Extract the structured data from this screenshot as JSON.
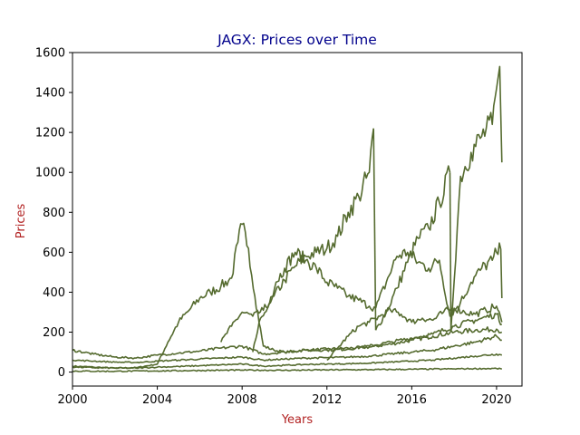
{
  "chart_data": {
    "type": "line",
    "title": "JAGX: Prices over Time",
    "xlabel": "Years",
    "ylabel": "Prices",
    "xlim": [
      2000.0,
      2021.2
    ],
    "ylim": [
      -70,
      1600
    ],
    "xticks": [
      2000,
      2004,
      2008,
      2012,
      2016,
      2020
    ],
    "yticks": [
      0,
      200,
      400,
      600,
      800,
      1000,
      1200,
      1400,
      1600
    ],
    "grid": false,
    "legend": "none",
    "colors": {
      "line": "#556b2f",
      "title": "#00008b",
      "axis_label": "#b22222"
    },
    "series": [
      {
        "x": [
          2000.0,
          2001.0,
          2002.0,
          2003.0,
          2004.0,
          2004.5,
          2005.0,
          2005.5,
          2006.0,
          2006.5,
          2007.0,
          2007.5,
          2007.8,
          2008.0,
          2008.3,
          2008.6,
          2009.0,
          2009.5,
          2010.0,
          2011.0,
          2012.0,
          2013.0,
          2014.0,
          2015.0,
          2016.0,
          2017.0,
          2018.0,
          2019.0,
          2020.0,
          2020.25
        ],
        "y": [
          30,
          25,
          20,
          22,
          40,
          150,
          250,
          310,
          370,
          400,
          430,
          470,
          650,
          740,
          620,
          380,
          130,
          110,
          100,
          110,
          115,
          120,
          125,
          140,
          160,
          180,
          200,
          210,
          215,
          200
        ]
      },
      {
        "x": [
          2007.0,
          2007.5,
          2008.0,
          2008.5,
          2009.0,
          2009.5,
          2010.0,
          2010.5,
          2011.0,
          2011.5,
          2012.0,
          2012.5,
          2013.0,
          2013.5,
          2014.0,
          2014.2
        ],
        "y": [
          150,
          230,
          300,
          280,
          310,
          380,
          460,
          530,
          580,
          600,
          620,
          680,
          800,
          880,
          1000,
          1220
        ]
      },
      {
        "x": [
          2014.2,
          2014.3
        ],
        "y": [
          1220,
          210
        ]
      },
      {
        "x": [
          2014.3,
          2014.8,
          2015.3,
          2015.8,
          2016.3,
          2016.8,
          2017.3,
          2017.8
        ],
        "y": [
          210,
          300,
          420,
          550,
          670,
          720,
          850,
          1000
        ]
      },
      {
        "x": [
          2017.8,
          2017.85
        ],
        "y": [
          1000,
          215
        ]
      },
      {
        "x": [
          2017.85,
          2018.3,
          2018.8,
          2019.3,
          2019.8,
          2020.0,
          2020.15,
          2020.25
        ],
        "y": [
          215,
          980,
          1100,
          1180,
          1240,
          1420,
          1530,
          1050
        ]
      },
      {
        "x": [
          2008.5,
          2008.8,
          2009.2,
          2009.6,
          2010.0,
          2010.5,
          2011.0,
          2011.5,
          2012.0,
          2012.5,
          2013.0,
          2013.5,
          2014.0,
          2014.3
        ],
        "y": [
          100,
          250,
          320,
          450,
          520,
          600,
          560,
          520,
          450,
          420,
          380,
          360,
          330,
          320
        ]
      },
      {
        "x": [
          2014.3,
          2014.8,
          2015.3,
          2015.8,
          2016.3,
          2016.8,
          2017.3,
          2017.8,
          2018.3,
          2018.8,
          2019.3,
          2019.8,
          2020.0,
          2020.2,
          2020.25
        ],
        "y": [
          320,
          450,
          580,
          600,
          550,
          520,
          560,
          280,
          350,
          450,
          520,
          560,
          600,
          615,
          370
        ]
      },
      {
        "x": [
          2012.0,
          2012.5,
          2013.0,
          2013.5,
          2014.0,
          2014.5,
          2015.0,
          2015.5,
          2016.0,
          2016.5,
          2017.0,
          2017.5,
          2018.0,
          2018.5,
          2019.0,
          2019.5,
          2020.0,
          2020.25
        ],
        "y": [
          60,
          120,
          180,
          230,
          250,
          280,
          310,
          290,
          250,
          270,
          260,
          300,
          320,
          300,
          290,
          310,
          330,
          250
        ]
      },
      {
        "x": [
          2000.0,
          2001.0,
          2002.0,
          2003.0,
          2004.0,
          2005.0,
          2006.0,
          2007.0,
          2008.0,
          2009.0,
          2010.0,
          2011.0,
          2012.0,
          2013.0,
          2014.0,
          2015.0,
          2016.0,
          2017.0,
          2018.0,
          2019.0,
          2020.0,
          2020.25
        ],
        "y": [
          110,
          90,
          75,
          70,
          85,
          95,
          105,
          120,
          130,
          90,
          100,
          110,
          110,
          115,
          130,
          150,
          170,
          190,
          230,
          260,
          290,
          240
        ]
      },
      {
        "x": [
          2000.0,
          2001.0,
          2002.0,
          2003.0,
          2004.0,
          2005.0,
          2006.0,
          2007.0,
          2008.0,
          2009.0,
          2010.0,
          2011.0,
          2012.0,
          2013.0,
          2014.0,
          2015.0,
          2016.0,
          2017.0,
          2018.0,
          2019.0,
          2020.0,
          2020.25
        ],
        "y": [
          60,
          55,
          50,
          48,
          55,
          60,
          65,
          70,
          75,
          60,
          65,
          70,
          72,
          75,
          80,
          90,
          100,
          110,
          130,
          150,
          180,
          160
        ]
      },
      {
        "x": [
          2000.0,
          2001.0,
          2002.0,
          2003.0,
          2004.0,
          2005.0,
          2006.0,
          2007.0,
          2008.0,
          2009.0,
          2010.0,
          2011.0,
          2012.0,
          2013.0,
          2014.0,
          2015.0,
          2016.0,
          2017.0,
          2018.0,
          2019.0,
          2020.0,
          2020.25
        ],
        "y": [
          25,
          22,
          20,
          20,
          25,
          28,
          32,
          36,
          40,
          30,
          34,
          38,
          40,
          42,
          45,
          50,
          55,
          60,
          70,
          80,
          90,
          85
        ]
      },
      {
        "x": [
          2000.0,
          2002.0,
          2004.0,
          2006.0,
          2008.0,
          2010.0,
          2012.0,
          2014.0,
          2016.0,
          2018.0,
          2020.0,
          2020.25
        ],
        "y": [
          5,
          4,
          6,
          8,
          10,
          9,
          11,
          12,
          14,
          16,
          18,
          15
        ]
      }
    ]
  }
}
